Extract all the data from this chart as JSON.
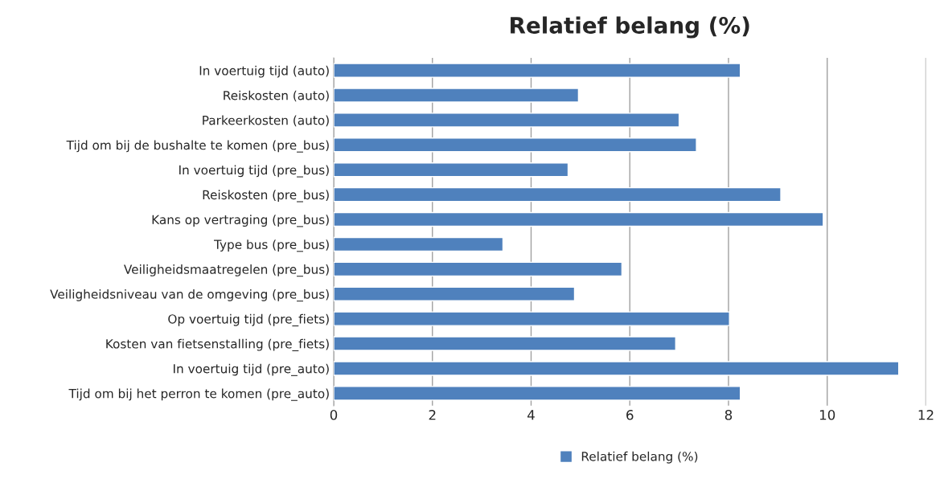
{
  "chart_data": {
    "type": "bar",
    "orientation": "horizontal",
    "title": "Relatief belang (%)",
    "categories": [
      "In voertuig tijd (auto)",
      "Reiskosten (auto)",
      "Parkeerkosten (auto)",
      "Tijd om bij de bushalte te komen (pre_bus)",
      "In voertuig tijd (pre_bus)",
      "Reiskosten (pre_bus)",
      "Kans op vertraging (pre_bus)",
      "Type bus (pre_bus)",
      "Veiligheidsmaatregelen (pre_bus)",
      "Veiligheidsniveau van de omgeving (pre_bus)",
      "Op voertuig tijd (pre_fiets)",
      "Kosten van fietsenstalling (pre_fiets)",
      "In voertuig tijd (pre_auto)",
      "Tijd om bij het perron te komen (pre_auto)"
    ],
    "series": [
      {
        "name": "Relatief belang (%)",
        "color": "#4f81bd",
        "values": [
          8.24,
          4.96,
          7.0,
          7.35,
          4.75,
          9.06,
          9.92,
          3.43,
          5.84,
          4.88,
          8.02,
          6.93,
          11.45,
          8.24
        ]
      }
    ],
    "xlim": [
      0,
      12
    ],
    "xticks": [
      0,
      2,
      4,
      6,
      8,
      10,
      12
    ],
    "grid": "x",
    "legend": "bottom"
  }
}
